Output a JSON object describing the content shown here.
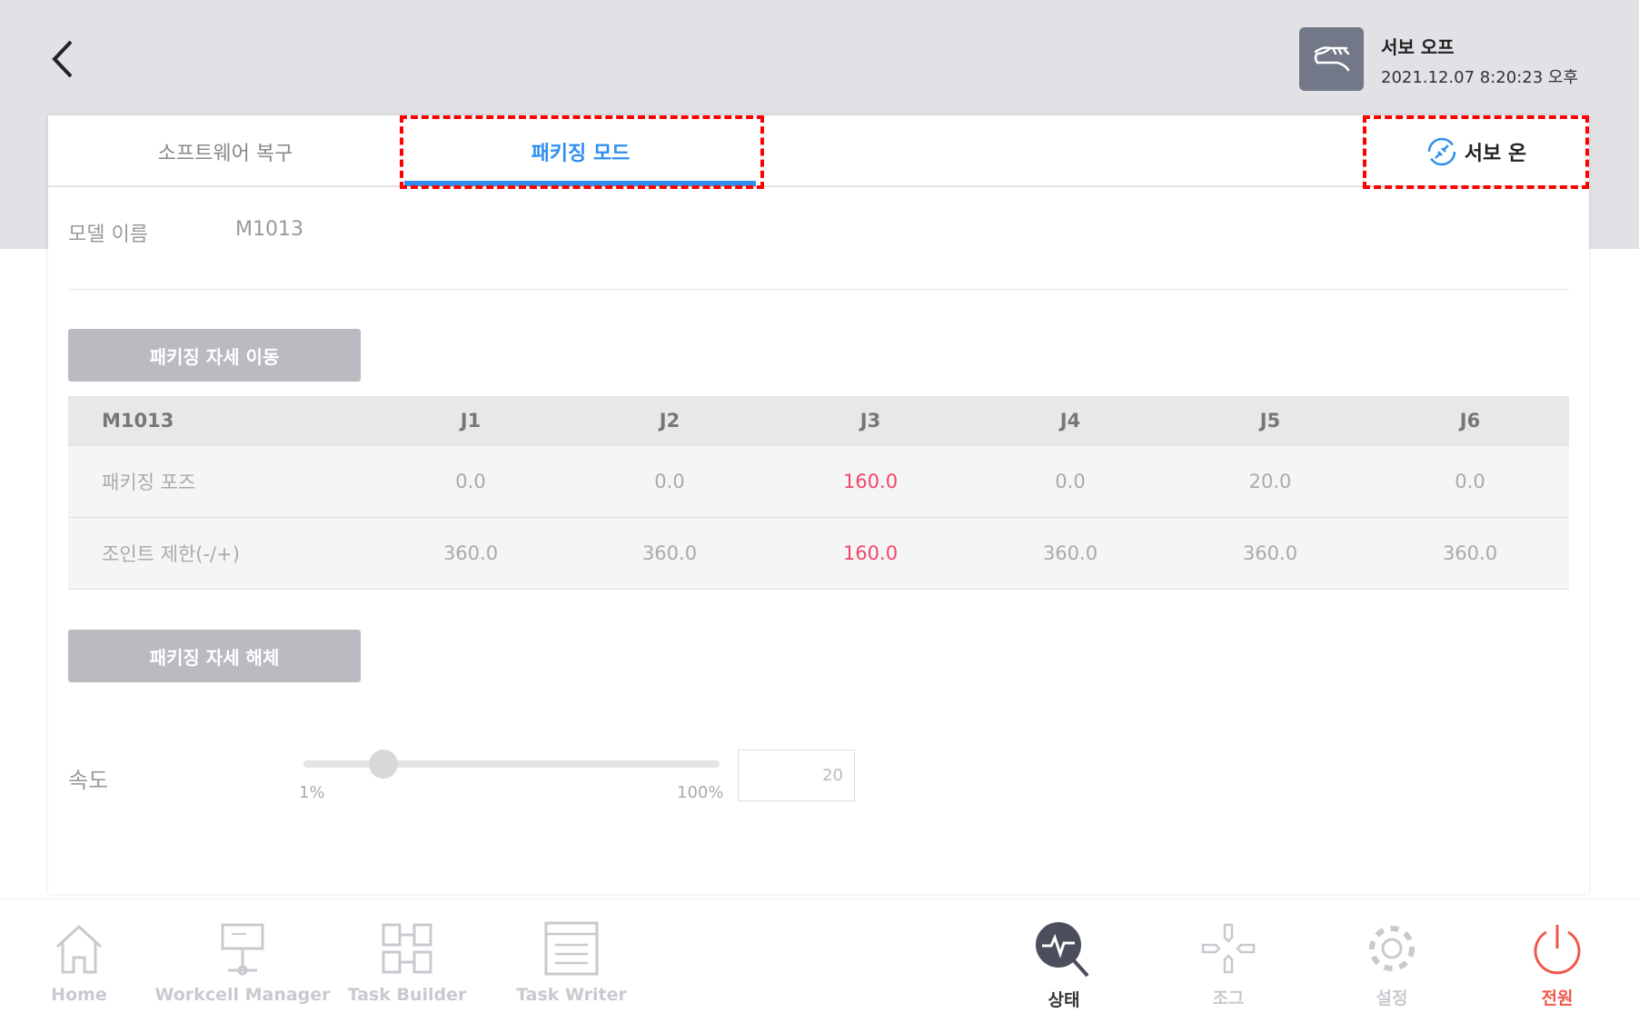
{
  "header": {
    "servo_status": "서보 오프",
    "datetime": "2021.12.07 8:20:23 오후"
  },
  "tabs": [
    {
      "label": "소프트웨어 복구"
    },
    {
      "label": "패키징 모드"
    }
  ],
  "servo_on_label": "서보 온",
  "model": {
    "label": "모델 이름",
    "value": "M1013"
  },
  "buttons": {
    "move": "패키징 자세 이동",
    "release": "패키징 자세 해체"
  },
  "table": {
    "headers": [
      "M1013",
      "J1",
      "J2",
      "J3",
      "J4",
      "J5",
      "J6"
    ],
    "rows": [
      [
        "패키징 포즈",
        "0.0",
        "0.0",
        "160.0",
        "0.0",
        "20.0",
        "0.0"
      ],
      [
        "조인트 제한(-/+)",
        "360.0",
        "360.0",
        "160.0",
        "360.0",
        "360.0",
        "360.0"
      ]
    ]
  },
  "speed": {
    "label": "속도",
    "min_label": "1%",
    "max_label": "100%",
    "value": "20",
    "percent": 20
  },
  "colors": {
    "accent": "#2f8ff0",
    "highlight": "#f0476a",
    "power": "#f0574a"
  },
  "nav": [
    {
      "label": "Home",
      "icon": "home-icon"
    },
    {
      "label": "Workcell Manager",
      "icon": "workcell-icon"
    },
    {
      "label": "Task Builder",
      "icon": "task-builder-icon"
    },
    {
      "label": "Task Writer",
      "icon": "task-writer-icon"
    },
    {
      "label": "상태",
      "icon": "status-icon"
    },
    {
      "label": "조그",
      "icon": "jog-icon"
    },
    {
      "label": "설정",
      "icon": "settings-icon"
    },
    {
      "label": "전원",
      "icon": "power-icon"
    }
  ]
}
